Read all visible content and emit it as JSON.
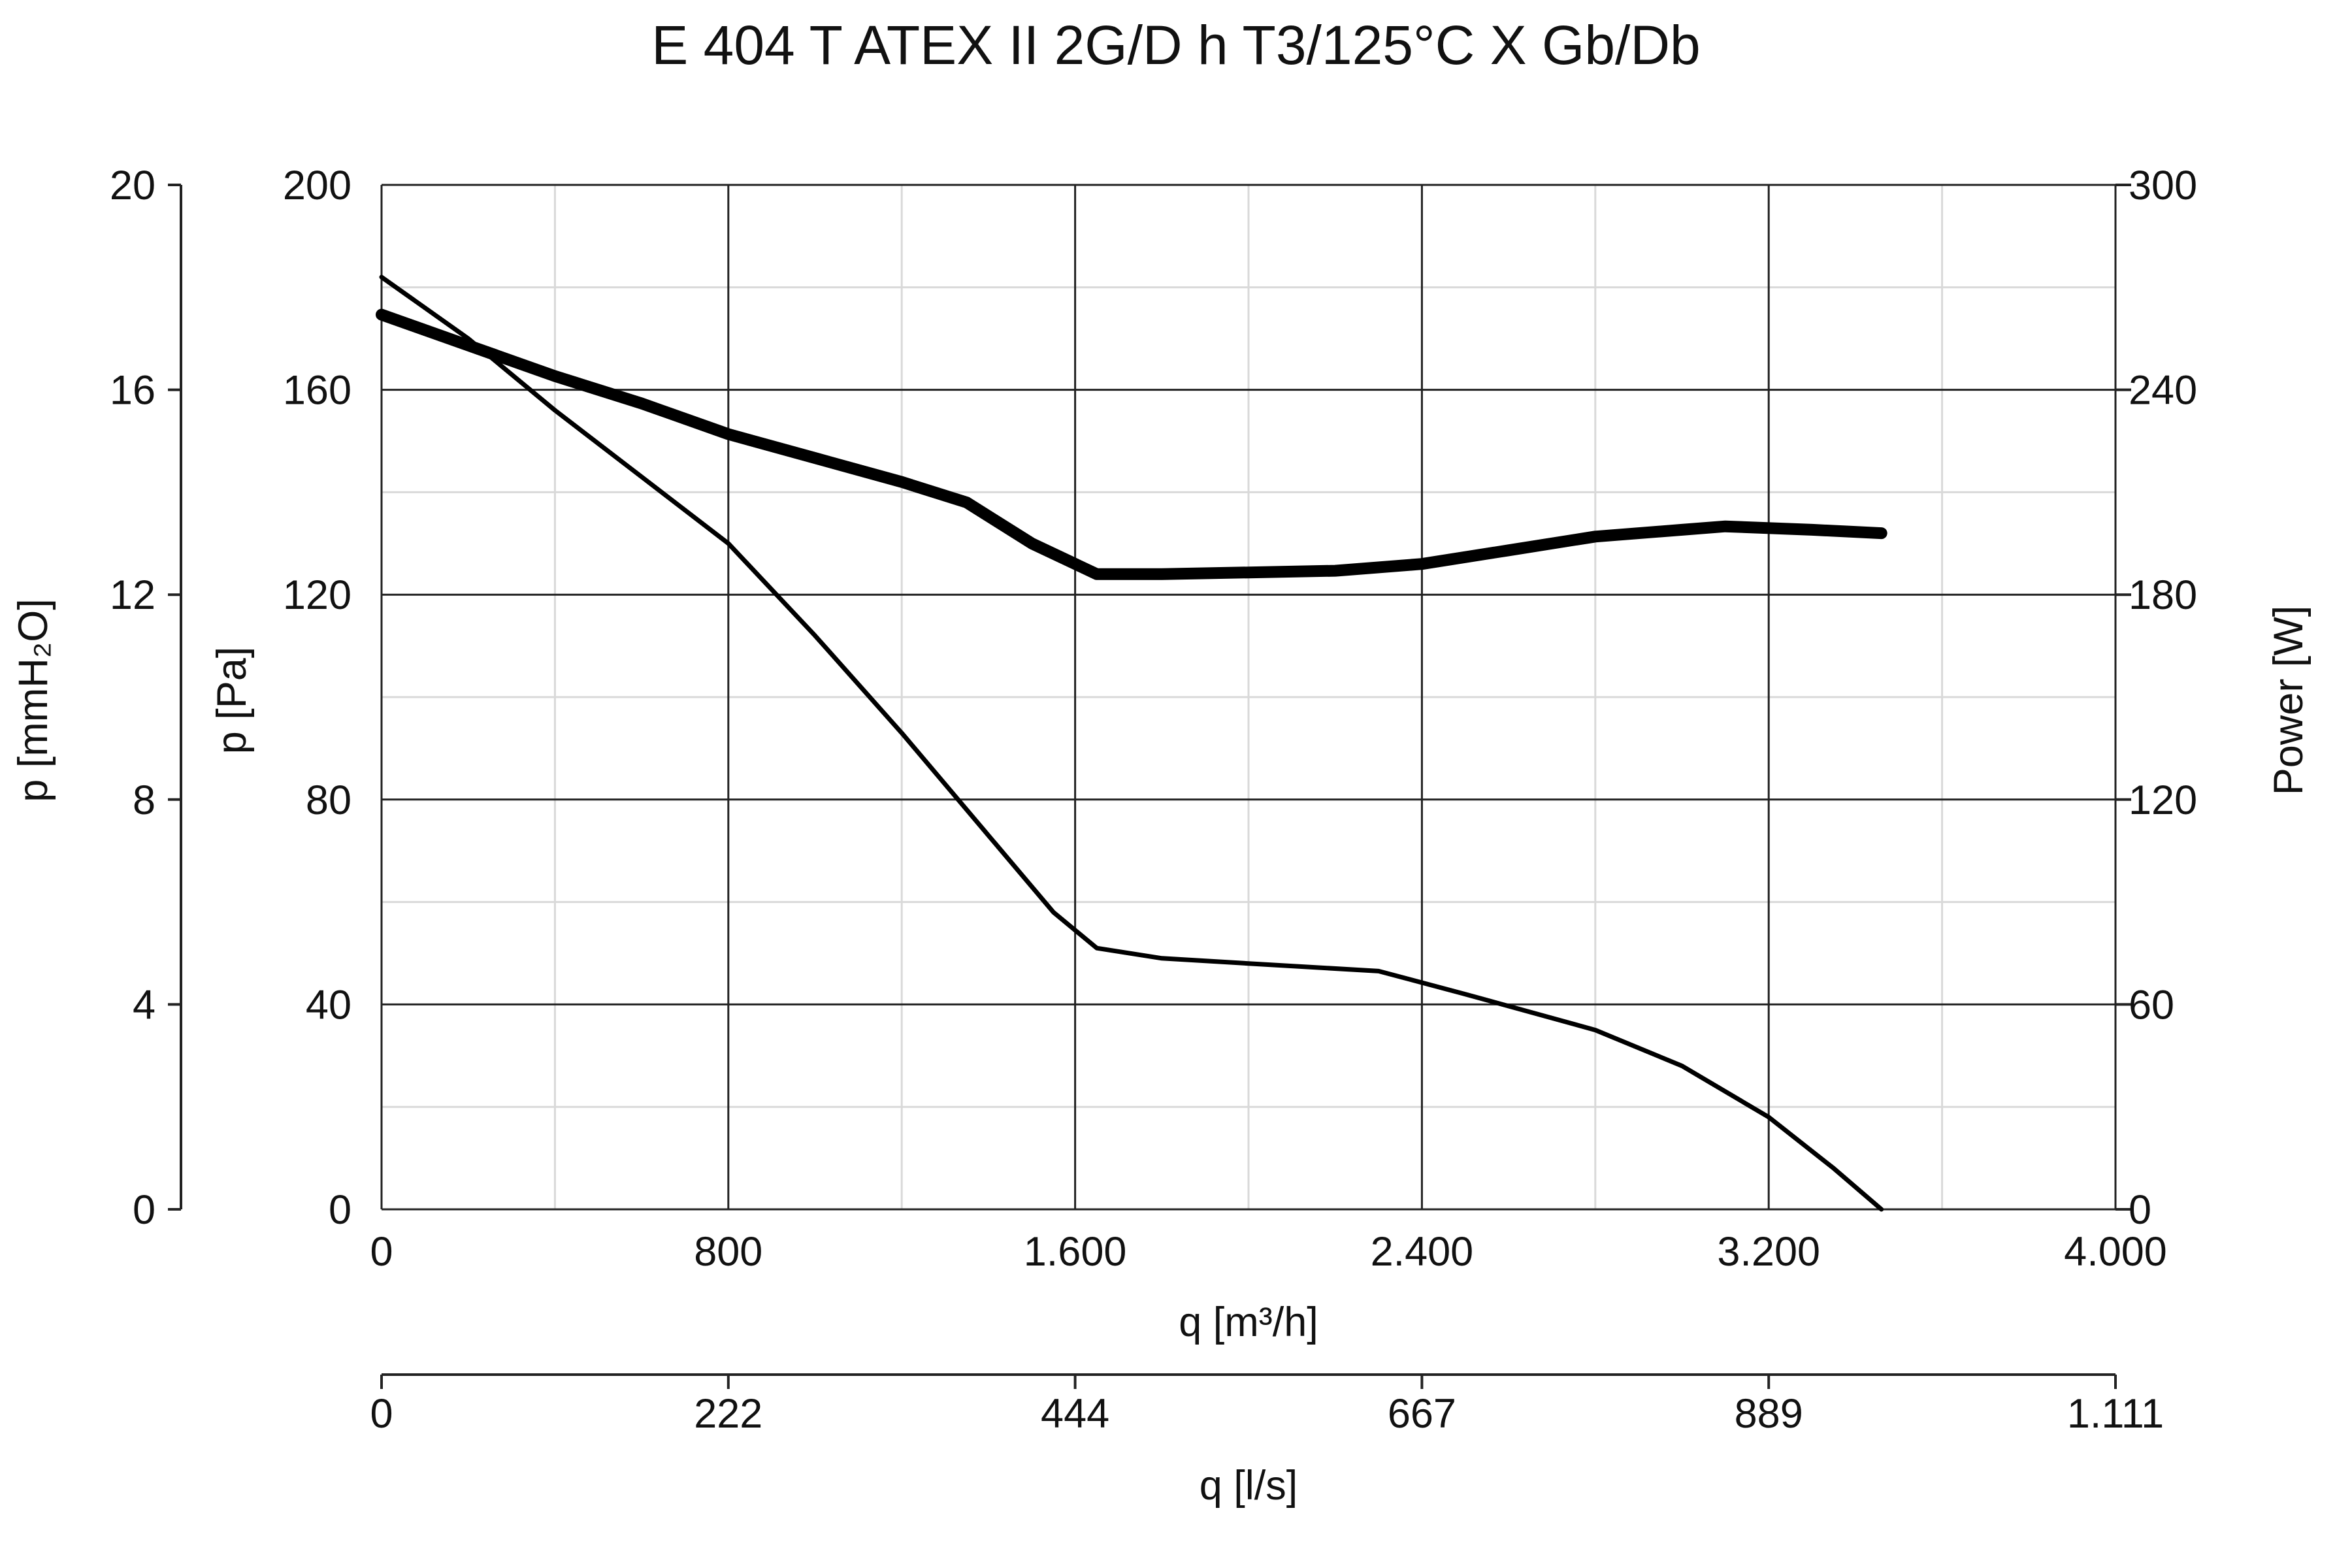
{
  "chart_data": {
    "type": "line",
    "title": "E 404 T ATEX II 2G/D h T3/125°C X Gb/Db",
    "x_axis": {
      "label": "q [m³/h]",
      "range": [
        0,
        4000
      ],
      "ticks": [
        0,
        800,
        1600,
        2400,
        3200,
        4000
      ],
      "tick_labels": [
        "0",
        "800",
        "1.600",
        "2.400",
        "3.200",
        "4.000"
      ],
      "minor_step": 400
    },
    "x_axis_secondary": {
      "label": "q [l/s]",
      "tick_labels": [
        "0",
        "222",
        "444",
        "667",
        "889",
        "1.111"
      ]
    },
    "y_axis_left": {
      "label": "p [Pa]",
      "range": [
        0,
        200
      ],
      "ticks": [
        0,
        40,
        80,
        120,
        160,
        200
      ],
      "tick_labels": [
        "0",
        "40",
        "80",
        "120",
        "160",
        "200"
      ],
      "minor_step": 20
    },
    "y_axis_left_outer": {
      "label": "p [mmH₂O]",
      "tick_labels": [
        "0",
        "4",
        "8",
        "12",
        "16",
        "20"
      ]
    },
    "y_axis_right": {
      "label": "Power [W]",
      "range": [
        0,
        300
      ],
      "tick_labels": [
        "0",
        "60",
        "120",
        "180",
        "240",
        "300"
      ]
    },
    "grid": true,
    "series": [
      {
        "axis": "left",
        "style": "thin",
        "x": [
          0,
          200,
          400,
          600,
          800,
          1000,
          1200,
          1400,
          1550,
          1650,
          1800,
          2000,
          2300,
          2500,
          2800,
          3000,
          3200,
          3350,
          3460
        ],
        "y": [
          182,
          170,
          156,
          143,
          130,
          112,
          93,
          73,
          58,
          51,
          49,
          48,
          46.5,
          42,
          35,
          28,
          18,
          8,
          0
        ]
      },
      {
        "axis": "right",
        "style": "thick",
        "x": [
          0,
          200,
          400,
          600,
          800,
          1000,
          1200,
          1350,
          1500,
          1650,
          1700,
          1800,
          2000,
          2200,
          2400,
          2600,
          2800,
          3000,
          3100,
          3300,
          3460
        ],
        "y": [
          262,
          253,
          244,
          236,
          227,
          220,
          213,
          207,
          195,
          186,
          186,
          186,
          186.5,
          187,
          189,
          193,
          197,
          199,
          200,
          199,
          198
        ]
      }
    ]
  }
}
